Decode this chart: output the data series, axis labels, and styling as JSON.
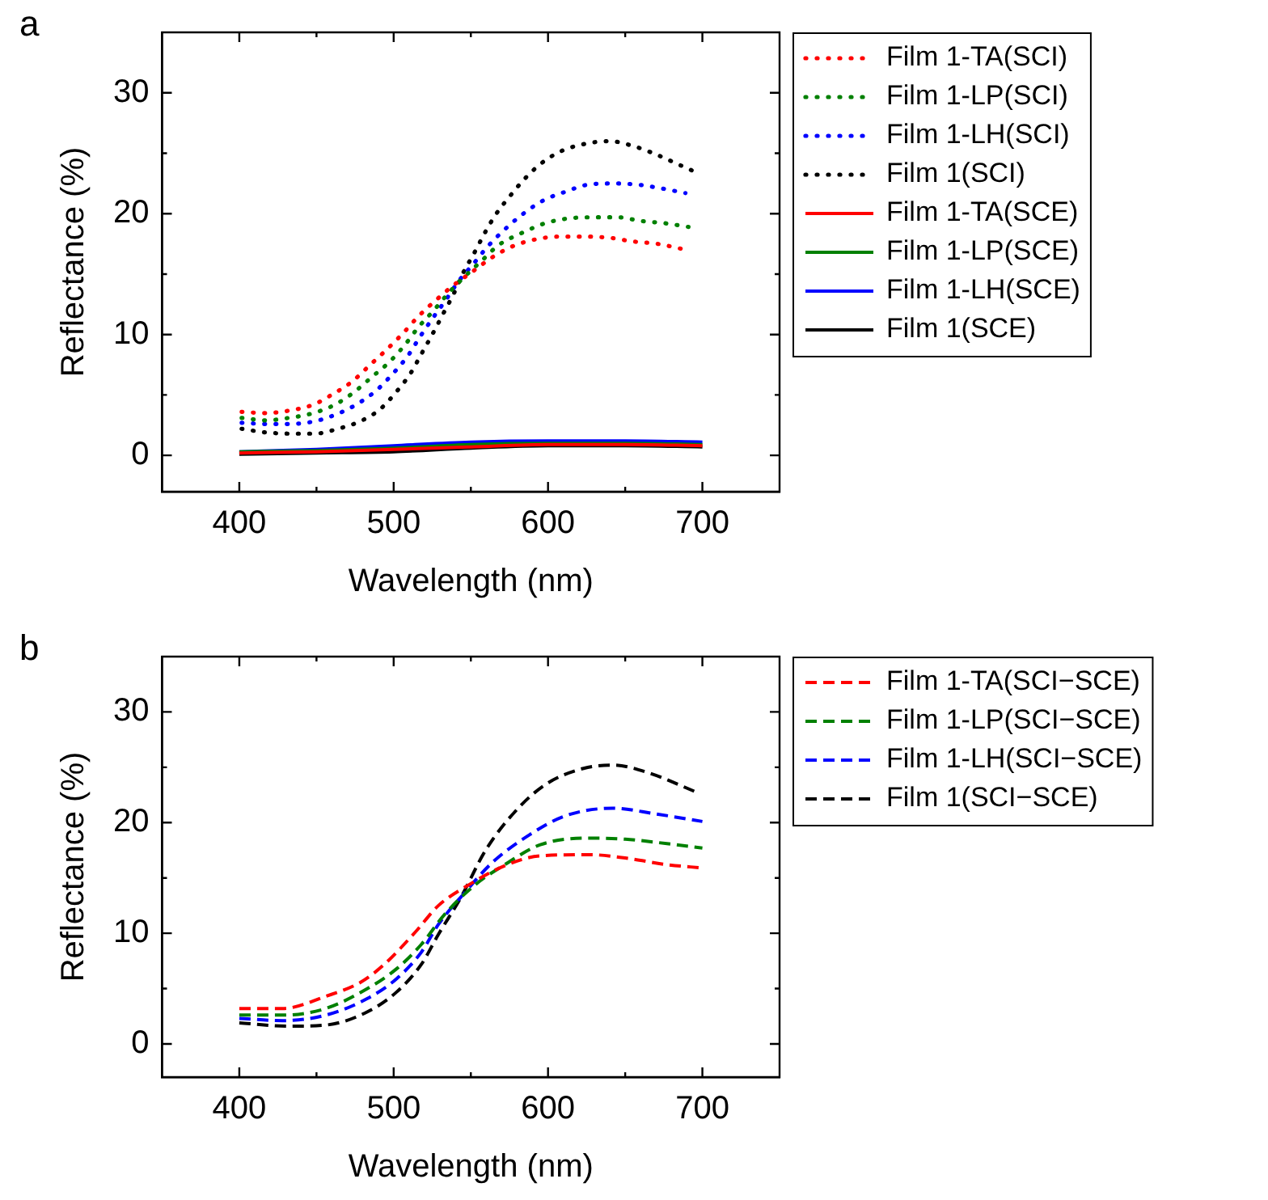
{
  "chart_data": [
    {
      "type": "line",
      "title": "a",
      "xlabel": "Wavelength (nm)",
      "ylabel": "Reflectance (%)",
      "xlim": [
        350,
        750
      ],
      "ylim": [
        -3,
        35
      ],
      "xticks": [
        400,
        {
          "value": 450,
          "label": null
        },
        500,
        {
          "value": 550,
          "label": null
        },
        600,
        {
          "value": 650,
          "label": null
        },
        700
      ],
      "yticks": [
        0,
        {
          "value": 5,
          "label": null
        },
        10,
        {
          "value": 15,
          "label": null
        },
        20,
        {
          "value": 25,
          "label": null
        },
        30
      ],
      "legend": "right",
      "marker": "none",
      "grid": false,
      "series": [
        {
          "name": "Film 1-TA(SCI)",
          "color": "#ff0000",
          "line_style": "dotted",
          "x": [
            401.5,
            417,
            432,
            448,
            461,
            473,
            484,
            495,
            506,
            516,
            527,
            539,
            551,
            564,
            577,
            593,
            608,
            624,
            640,
            655,
            671,
            686
          ],
          "values": [
            3.6,
            3.5,
            3.7,
            4.2,
            5.1,
            6.1,
            7.4,
            8.7,
            10.1,
            11.5,
            12.8,
            14.1,
            15.2,
            16.4,
            17.3,
            17.9,
            18.1,
            18.1,
            18.0,
            17.7,
            17.5,
            17.1
          ]
        },
        {
          "name": "Film 1-LP(SCI)",
          "color": "#008000",
          "line_style": "dotted",
          "x": [
            401.5,
            417,
            432,
            448,
            462,
            474,
            486,
            497,
            507,
            516,
            526,
            536,
            546,
            557,
            568,
            583,
            598,
            613,
            629,
            645,
            660,
            676,
            691
          ],
          "values": [
            3.1,
            2.9,
            3.1,
            3.5,
            4.2,
            5.2,
            6.5,
            7.7,
            9.1,
            10.6,
            12.0,
            13.5,
            14.8,
            16.1,
            17.4,
            18.4,
            19.2,
            19.6,
            19.7,
            19.7,
            19.4,
            19.2,
            18.9
          ]
        },
        {
          "name": "Film 1-LH(SCI)",
          "color": "#0000ff",
          "line_style": "dotted",
          "x": [
            401.5,
            417,
            432,
            448,
            463,
            477,
            489,
            499,
            509,
            517,
            525,
            534,
            542,
            552,
            561,
            572,
            584,
            597,
            611,
            626,
            642,
            658,
            673,
            689
          ],
          "values": [
            2.7,
            2.6,
            2.6,
            2.8,
            3.4,
            4.3,
            5.4,
            6.7,
            8.2,
            9.8,
            11.3,
            12.9,
            14.4,
            15.9,
            17.3,
            18.7,
            20.0,
            21.1,
            21.8,
            22.4,
            22.5,
            22.4,
            22.1,
            21.7
          ]
        },
        {
          "name": "Film 1(SCI)",
          "color": "#000000",
          "line_style": "dotted",
          "x": [
            401.5,
            417,
            433,
            449,
            464,
            478,
            491,
            502,
            511,
            518,
            525,
            532,
            539,
            545,
            552,
            559,
            566,
            575,
            585,
            596,
            609,
            625,
            640,
            655,
            670,
            684,
            698
          ],
          "values": [
            2.2,
            1.9,
            1.8,
            1.8,
            2.2,
            2.8,
            3.8,
            5.3,
            6.8,
            8.4,
            10.0,
            11.7,
            13.4,
            15.1,
            16.7,
            18.4,
            19.9,
            21.4,
            22.9,
            24.2,
            25.2,
            25.8,
            26.0,
            25.6,
            24.9,
            24.1,
            23.3
          ]
        },
        {
          "name": "Film 1-TA(SCE)",
          "color": "#ff0000",
          "line_style": "solid",
          "x": [
            400,
            450,
            500,
            550,
            600,
            650,
            700
          ],
          "values": [
            0.2,
            0.3,
            0.5,
            0.7,
            0.9,
            0.9,
            0.8
          ]
        },
        {
          "name": "Film 1-LP(SCE)",
          "color": "#008000",
          "line_style": "solid",
          "x": [
            400,
            450,
            500,
            550,
            600,
            650,
            700
          ],
          "values": [
            0.3,
            0.4,
            0.6,
            0.9,
            1.0,
            1.0,
            0.9
          ]
        },
        {
          "name": "Film 1-LH(SCE)",
          "color": "#0000ff",
          "line_style": "solid",
          "x": [
            400,
            450,
            500,
            550,
            600,
            650,
            700
          ],
          "values": [
            0.3,
            0.5,
            0.8,
            1.1,
            1.2,
            1.2,
            1.1
          ]
        },
        {
          "name": "Film 1(SCE)",
          "color": "#000000",
          "line_style": "solid",
          "x": [
            400,
            450,
            500,
            550,
            600,
            650,
            700
          ],
          "values": [
            0.1,
            0.2,
            0.3,
            0.6,
            0.8,
            0.8,
            0.7
          ]
        }
      ]
    },
    {
      "type": "line",
      "title": "b",
      "xlabel": "Wavelength (nm)",
      "ylabel": "Reflectance (%)",
      "xlim": [
        350,
        750
      ],
      "ylim": [
        -3,
        35
      ],
      "xticks": [
        400,
        {
          "value": 450,
          "label": null
        },
        500,
        {
          "value": 550,
          "label": null
        },
        600,
        {
          "value": 650,
          "label": null
        },
        700
      ],
      "yticks": [
        0,
        {
          "value": 5,
          "label": null
        },
        10,
        {
          "value": 15,
          "label": null
        },
        20,
        {
          "value": 25,
          "label": null
        },
        30
      ],
      "legend": "right",
      "marker": "none",
      "grid": false,
      "line_style": "dashed",
      "series": [
        {
          "name": "Film 1-TA(SCI−SCE)",
          "color": "#ff0000",
          "x": [
            400,
            428,
            456,
            479,
            494,
            514,
            529,
            549,
            572,
            595,
            627,
            650,
            677,
            700
          ],
          "values": [
            3.2,
            3.2,
            4.3,
            5.6,
            7.2,
            10.1,
            12.5,
            14.4,
            16.1,
            17.0,
            17.1,
            16.8,
            16.2,
            15.9
          ]
        },
        {
          "name": "Film 1-LP(SCI−SCE)",
          "color": "#008000",
          "x": [
            400,
            428,
            456,
            483,
            502,
            518,
            533,
            553,
            572,
            595,
            627,
            650,
            677,
            700
          ],
          "values": [
            2.6,
            2.6,
            3.2,
            5.0,
            6.8,
            9.0,
            11.7,
            14.4,
            16.2,
            18.0,
            18.6,
            18.5,
            18.1,
            17.7
          ]
        },
        {
          "name": "Film 1-LH(SCI−SCE)",
          "color": "#0000ff",
          "x": [
            400,
            428,
            456,
            483,
            502,
            518,
            529,
            545,
            564,
            588,
            611,
            642,
            669,
            700
          ],
          "values": [
            2.3,
            2.1,
            2.6,
            4.1,
            5.9,
            8.3,
            10.8,
            13.5,
            16.4,
            18.9,
            20.6,
            21.3,
            20.8,
            20.1
          ]
        },
        {
          "name": "Film 1(SCI−SCE)",
          "color": "#000000",
          "x": [
            400,
            432,
            456,
            483,
            502,
            518,
            529,
            543,
            560,
            580,
            599,
            623,
            642,
            665,
            697
          ],
          "values": [
            1.9,
            1.6,
            1.7,
            2.9,
            4.7,
            7.2,
            9.9,
            13.1,
            17.6,
            21.2,
            23.5,
            24.9,
            25.2,
            24.5,
            22.7
          ]
        }
      ]
    }
  ]
}
